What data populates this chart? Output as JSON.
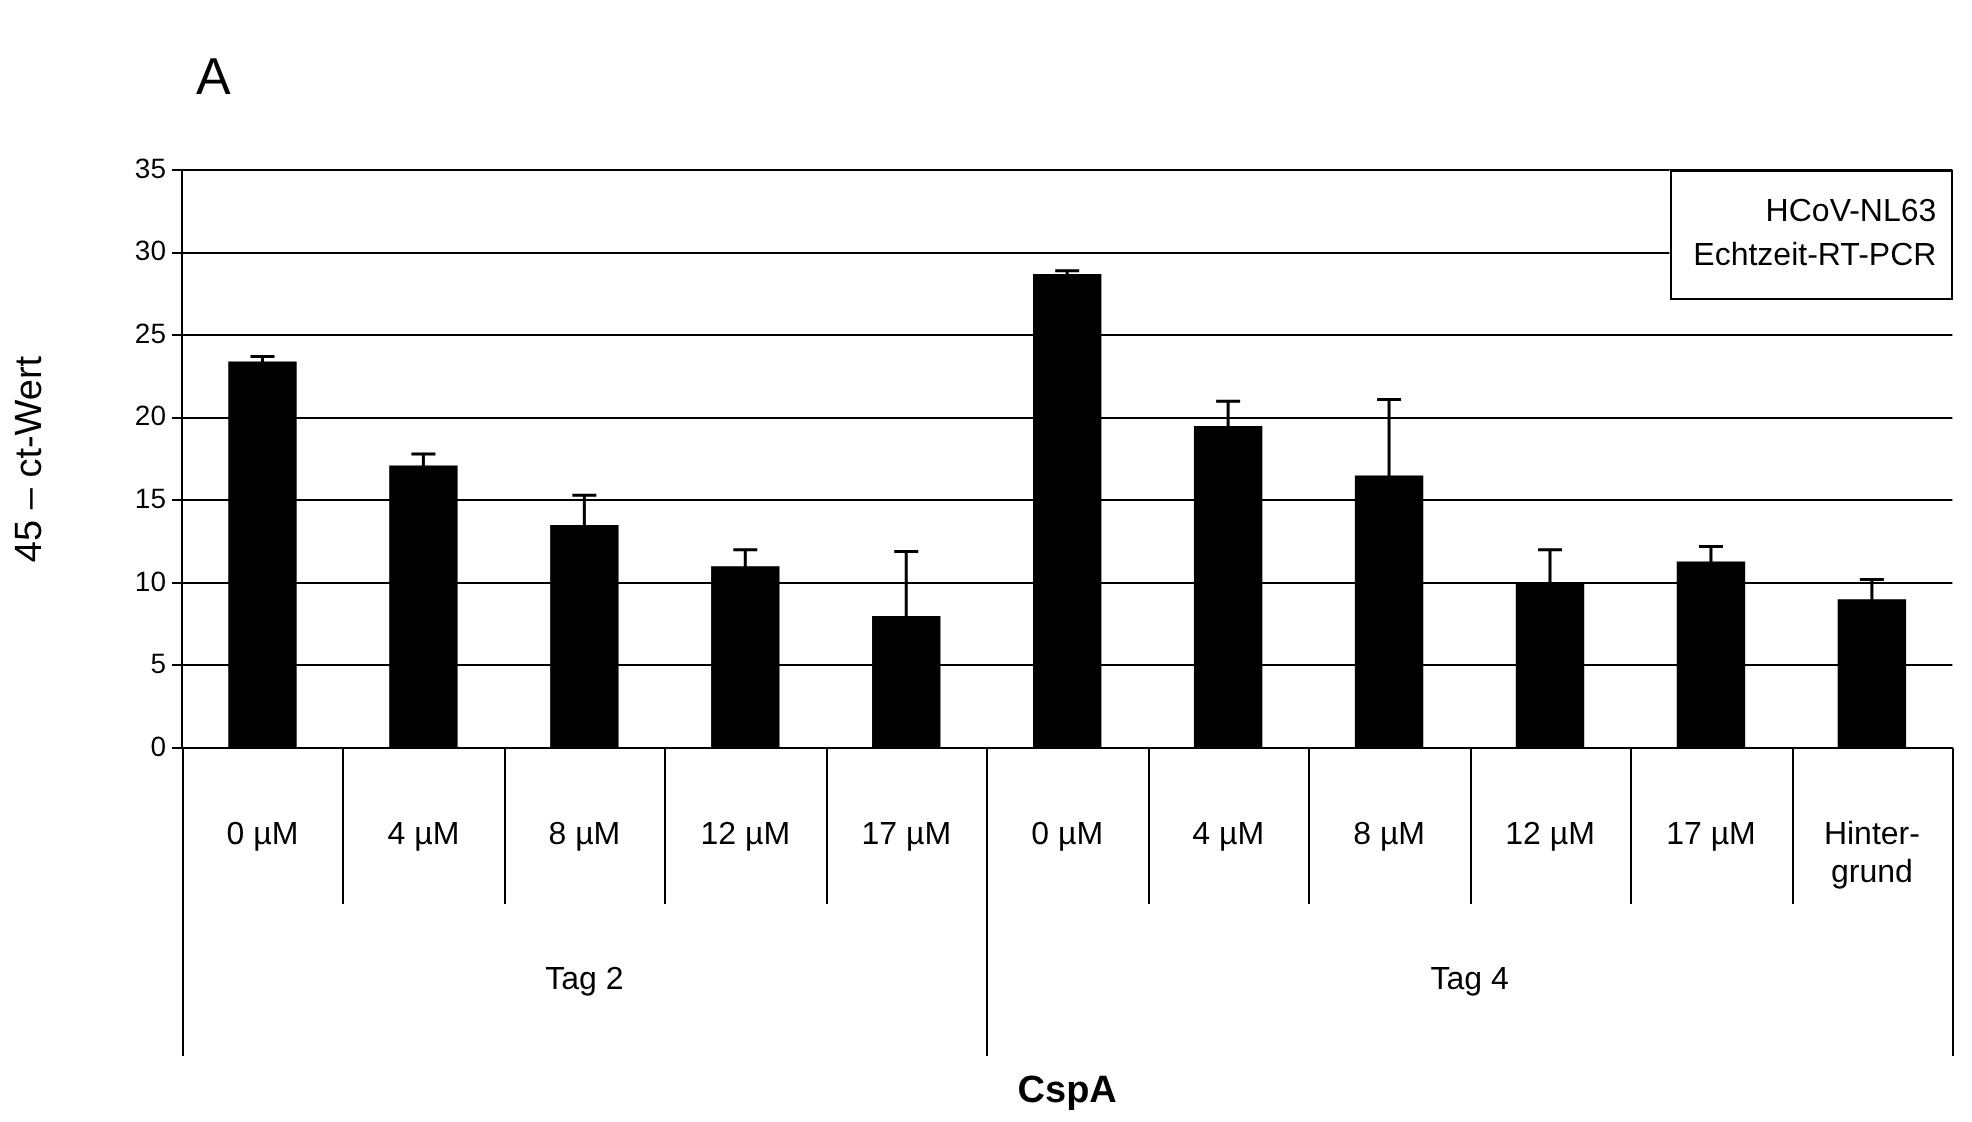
{
  "chart_data": {
    "type": "bar",
    "title": "A",
    "xlabel": "CspA",
    "ylabel": "45 – ct-Wert",
    "categories": [
      "0 µM",
      "4 µM",
      "8 µM",
      "12 µM",
      "17 µM",
      "0 µM",
      "4 µM",
      "8 µM",
      "12 µM",
      "17 µM",
      "Hinter-\ngrund"
    ],
    "values": [
      23.4,
      17.1,
      13.5,
      11.0,
      8.0,
      28.7,
      19.5,
      16.5,
      10.0,
      11.3,
      9.0
    ],
    "errors": [
      0.3,
      0.7,
      1.8,
      1.0,
      3.9,
      0.2,
      1.5,
      4.6,
      2.0,
      0.9,
      1.2
    ],
    "color": "#000000",
    "ylim": [
      0,
      35
    ],
    "yticks": [
      0,
      5,
      10,
      15,
      20,
      25,
      30,
      35
    ],
    "grid": "y",
    "legend": false,
    "annotations": [
      "HCoV-NL63\nEchtzeit-RT-PCR",
      "Tag 2",
      "Tag 4"
    ]
  }
}
